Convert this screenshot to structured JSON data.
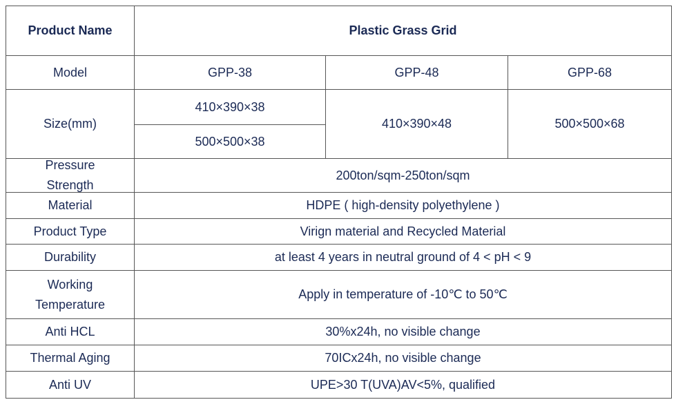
{
  "table": {
    "header": [
      "Product Name",
      "Plastic Grass Grid"
    ],
    "model": {
      "label": "Model",
      "values": [
        "GPP-38",
        "GPP-48",
        "GPP-68"
      ]
    },
    "size": {
      "label": "Size(mm)",
      "values": [
        [
          "410×390×38",
          "500×500×38"
        ],
        "410×390×48",
        "500×500×68"
      ]
    },
    "rows": [
      [
        "Pressure Strength",
        "200ton/sqm-250ton/sqm"
      ],
      [
        "Material",
        "HDPE ( high-density polyethylene )"
      ],
      [
        "Product Type",
        "Virign material and Recycled Material"
      ],
      [
        "Durability",
        "at least 4 years in neutral ground of 4 < pH < 9"
      ],
      [
        "Working Temperature",
        "Apply in temperature of -10℃ to 50℃"
      ],
      [
        "Anti HCL",
        "30%x24h, no visible change"
      ],
      [
        "Thermal Aging",
        "70ICx24h, no visible change"
      ],
      [
        "Anti UV",
        "UPE>30 T(UVA)AV<5%, qualified"
      ]
    ]
  }
}
